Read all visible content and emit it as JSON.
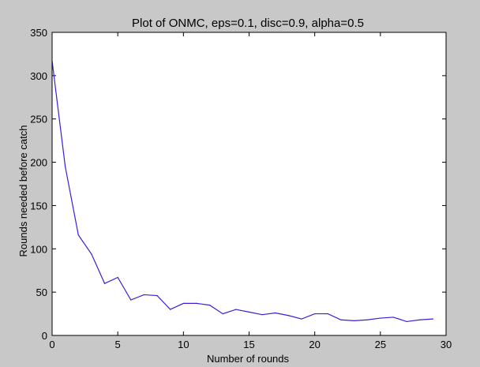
{
  "chart_data": {
    "type": "line",
    "title": "Plot of ONMC, eps=0.1, disc=0.9, alpha=0.5",
    "xlabel": "Number of rounds",
    "ylabel": "Rounds needed before catch",
    "xlim": [
      0,
      30
    ],
    "ylim": [
      0,
      350
    ],
    "xticks": [
      0,
      5,
      10,
      15,
      20,
      25,
      30
    ],
    "yticks": [
      0,
      50,
      100,
      150,
      200,
      250,
      300,
      350
    ],
    "grid": false,
    "series": [
      {
        "name": "ONMC",
        "color": "#3a1fd6",
        "x": [
          0,
          1,
          2,
          3,
          4,
          5,
          6,
          7,
          8,
          9,
          10,
          11,
          12,
          13,
          14,
          15,
          16,
          17,
          18,
          19,
          20,
          21,
          22,
          23,
          24,
          25,
          26,
          27,
          28,
          29
        ],
        "y": [
          317,
          195,
          116,
          94,
          60,
          67,
          41,
          47,
          46,
          30,
          37,
          37,
          35,
          25,
          30,
          27,
          24,
          26,
          23,
          19,
          25,
          25,
          18,
          17,
          18,
          20,
          21,
          16,
          18,
          19
        ]
      }
    ]
  }
}
